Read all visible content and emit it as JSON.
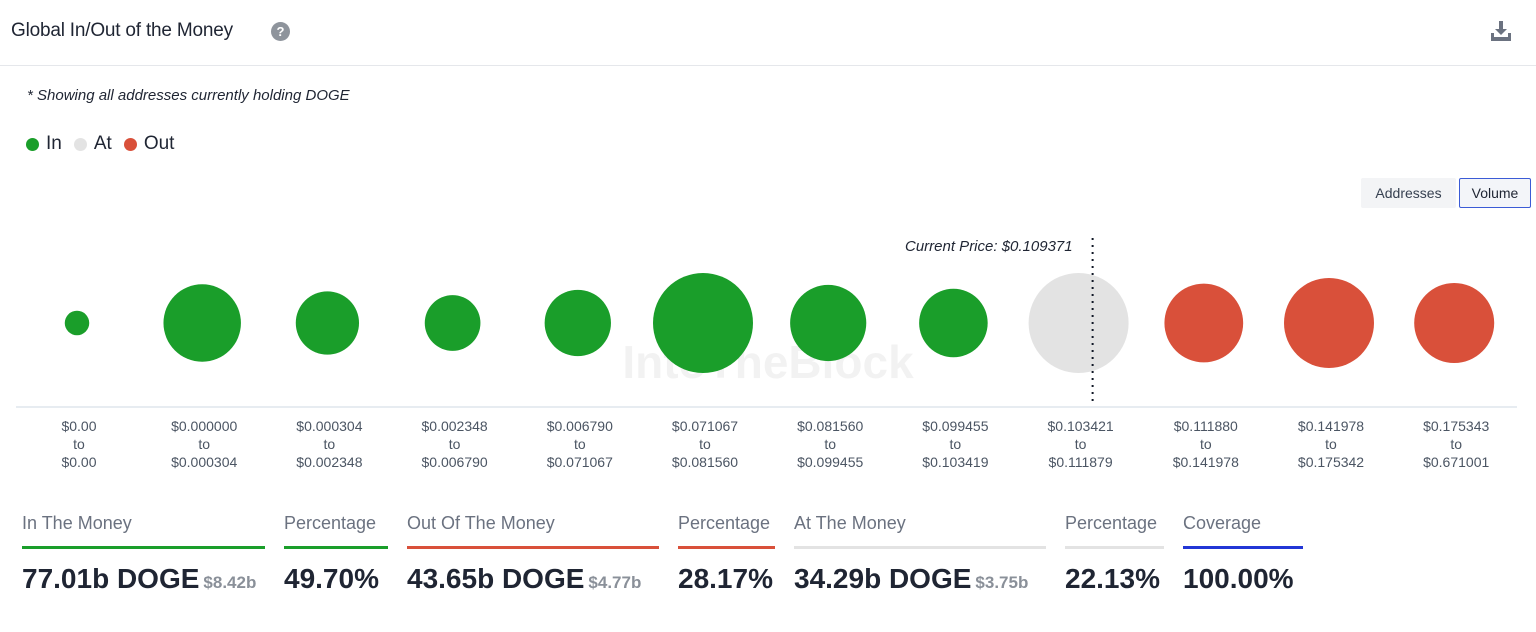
{
  "header": {
    "title": "Global In/Out of the Money",
    "help_icon": "question-circle-icon",
    "download_icon": "download-icon"
  },
  "note": "* Showing all addresses currently holding DOGE",
  "legend": [
    {
      "label": "In",
      "color": "#1a9e2a"
    },
    {
      "label": "At",
      "color": "#e3e3e3"
    },
    {
      "label": "Out",
      "color": "#d9503a"
    }
  ],
  "toggle": {
    "addresses_label": "Addresses",
    "volume_label": "Volume",
    "selected": "Volume"
  },
  "chart_data": {
    "type": "bubble",
    "watermark": "IntoTheBlock",
    "current_price_label": "Current Price: $0.109371",
    "current_price": 0.109371,
    "size_metric": "Volume (relative)",
    "buckets": [
      {
        "from": "$0.00",
        "to": "$0.00",
        "status": "in",
        "size": 0.06
      },
      {
        "from": "$0.000000",
        "to": "$0.000304",
        "status": "in",
        "size": 0.6
      },
      {
        "from": "$0.000304",
        "to": "$0.002348",
        "status": "in",
        "size": 0.4
      },
      {
        "from": "$0.002348",
        "to": "$0.006790",
        "status": "in",
        "size": 0.31
      },
      {
        "from": "$0.006790",
        "to": "$0.071067",
        "status": "in",
        "size": 0.44
      },
      {
        "from": "$0.071067",
        "to": "$0.081560",
        "status": "in",
        "size": 1.0
      },
      {
        "from": "$0.081560",
        "to": "$0.099455",
        "status": "in",
        "size": 0.58
      },
      {
        "from": "$0.099455",
        "to": "$0.103419",
        "status": "in",
        "size": 0.47
      },
      {
        "from": "$0.103421",
        "to": "$0.111879",
        "status": "at",
        "size": 1.0
      },
      {
        "from": "$0.111880",
        "to": "$0.141978",
        "status": "out",
        "size": 0.62
      },
      {
        "from": "$0.141978",
        "to": "$0.175342",
        "status": "out",
        "size": 0.81
      },
      {
        "from": "$0.175343",
        "to": "$0.671001",
        "status": "out",
        "size": 0.64
      }
    ],
    "separator_word": "to",
    "colors": {
      "in": "#1a9e2a",
      "at": "#e3e3e3",
      "out": "#d9503a"
    }
  },
  "stats": [
    {
      "label": "In The Money",
      "value": "77.01b DOGE",
      "sub": "$8.42b",
      "color": "#1a9e2a"
    },
    {
      "label": "Percentage",
      "value": "49.70%",
      "sub": "",
      "color": "#1a9e2a"
    },
    {
      "label": "Out Of The Money",
      "value": "43.65b DOGE",
      "sub": "$4.77b",
      "color": "#d9503a"
    },
    {
      "label": "Percentage",
      "value": "28.17%",
      "sub": "",
      "color": "#d9503a"
    },
    {
      "label": "At The Money",
      "value": "34.29b DOGE",
      "sub": "$3.75b",
      "color": "#e3e3e3"
    },
    {
      "label": "Percentage",
      "value": "22.13%",
      "sub": "",
      "color": "#e3e3e3"
    },
    {
      "label": "Coverage",
      "value": "100.00%",
      "sub": "",
      "color": "#2236d6"
    }
  ]
}
